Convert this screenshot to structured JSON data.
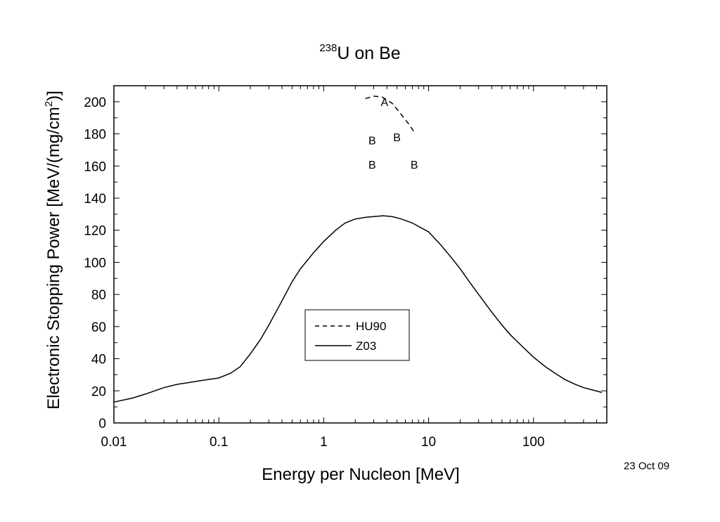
{
  "chart_data": {
    "type": "line",
    "title_superscript": "238",
    "title": "U on Be",
    "xlabel": "Energy per Nucleon [MeV]",
    "ylabel_main": "Electronic Stopping Power [MeV/(mg/cm",
    "ylabel_sup": "2",
    "ylabel_end": ")]",
    "xscale": "log",
    "xlim": [
      0.01,
      500
    ],
    "ylim": [
      0,
      210
    ],
    "x_ticks": [
      0.01,
      0.1,
      1,
      10,
      100
    ],
    "x_tick_labels": [
      "0.01",
      "0.1",
      "1",
      "10",
      "100"
    ],
    "y_ticks": [
      0,
      20,
      40,
      60,
      80,
      100,
      120,
      140,
      160,
      180,
      200
    ],
    "y_tick_labels": [
      "0",
      "20",
      "40",
      "60",
      "80",
      "100",
      "120",
      "140",
      "160",
      "180",
      "200"
    ],
    "grid": false,
    "legend_placement": "lower-center",
    "series": [
      {
        "name": "HU90",
        "style": "dashed",
        "x": [
          2.5,
          3.0,
          3.6,
          4.5,
          5.5,
          6.5,
          7.5
        ],
        "y": [
          202,
          203.5,
          203,
          199,
          192,
          186,
          180
        ]
      },
      {
        "name": "Z03",
        "style": "solid",
        "x": [
          0.01,
          0.015,
          0.02,
          0.03,
          0.04,
          0.05,
          0.07,
          0.1,
          0.13,
          0.16,
          0.2,
          0.25,
          0.3,
          0.4,
          0.5,
          0.6,
          0.8,
          1.0,
          1.3,
          1.6,
          2.0,
          2.5,
          3.0,
          3.7,
          4.5,
          5.5,
          7.0,
          8.5,
          10,
          13,
          16,
          20,
          25,
          30,
          40,
          50,
          60,
          80,
          100,
          130,
          160,
          200,
          250,
          300,
          450
        ],
        "y": [
          13,
          15.5,
          18,
          22,
          24,
          25,
          26.5,
          28,
          31,
          35,
          43,
          52,
          61,
          76,
          88,
          96,
          106,
          113,
          120,
          124.5,
          127,
          128,
          128.5,
          129,
          128.5,
          127,
          124.5,
          121.5,
          119,
          111,
          104,
          96,
          87,
          80,
          69,
          61,
          55,
          47,
          41,
          35,
          31,
          27,
          24,
          22,
          19
        ]
      }
    ],
    "data_point_labels": [
      {
        "text": "A",
        "x": 3.8,
        "y": 200
      },
      {
        "text": "B",
        "x": 2.9,
        "y": 176
      },
      {
        "text": "B",
        "x": 5.0,
        "y": 178
      },
      {
        "text": "B",
        "x": 2.9,
        "y": 161
      },
      {
        "text": "B",
        "x": 7.3,
        "y": 161
      }
    ]
  },
  "date_stamp": "23 Oct 09"
}
